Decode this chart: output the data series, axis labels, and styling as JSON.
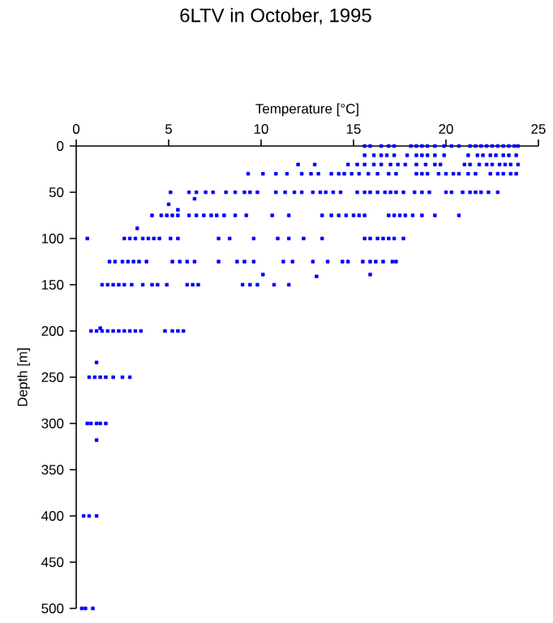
{
  "chart_data": {
    "type": "scatter",
    "title": "6LTV in October, 1995",
    "xlabel": "Temperature [°C]",
    "ylabel": "Depth [m]",
    "xlim": [
      0,
      25
    ],
    "xticks": [
      0,
      5,
      10,
      15,
      20,
      25
    ],
    "ylim": [
      500,
      0
    ],
    "yticks": [
      0,
      50,
      100,
      150,
      200,
      250,
      300,
      350,
      400,
      450,
      500
    ],
    "grid": false,
    "marker": "square",
    "series": [
      {
        "color": "#0000ff",
        "x": [
          15.6,
          15.9,
          16.5,
          16.9,
          17.2,
          18.1,
          18.4,
          18.7,
          19.0,
          19.4,
          19.9,
          20.3,
          20.7,
          21.3,
          21.6,
          21.9,
          22.2,
          22.5,
          22.8,
          23.1,
          23.4,
          23.7,
          23.9,
          15.6,
          16.1,
          16.5,
          16.8,
          17.2,
          17.9,
          18.4,
          18.7,
          19.0,
          19.4,
          19.9,
          21.2,
          21.7,
          22.0,
          22.4,
          22.7,
          23.1,
          23.4,
          23.8,
          12.0,
          12.9,
          14.7,
          15.2,
          15.6,
          16.1,
          16.5,
          17.0,
          17.4,
          17.8,
          18.4,
          18.9,
          19.4,
          19.7,
          21.0,
          21.3,
          21.8,
          22.2,
          22.5,
          22.9,
          23.2,
          23.5,
          23.9,
          9.3,
          10.1,
          10.8,
          11.4,
          12.2,
          12.7,
          13.1,
          13.8,
          14.2,
          14.5,
          14.9,
          15.3,
          15.8,
          16.3,
          16.9,
          17.3,
          18.4,
          18.7,
          19.0,
          19.6,
          20.0,
          20.4,
          20.7,
          21.2,
          21.6,
          22.4,
          22.8,
          23.1,
          23.5,
          23.8,
          5.1,
          6.1,
          6.5,
          7.0,
          7.4,
          8.1,
          8.6,
          9.1,
          9.4,
          9.8,
          10.8,
          11.3,
          11.8,
          12.2,
          12.8,
          13.2,
          13.5,
          13.9,
          14.3,
          15.2,
          15.6,
          15.9,
          16.3,
          16.7,
          17.0,
          17.3,
          17.7,
          18.3,
          18.7,
          19.1,
          20.0,
          20.3,
          20.9,
          21.3,
          21.6,
          21.9,
          22.3,
          22.8,
          6.4,
          5.0,
          5.5,
          3.3,
          4.1,
          4.6,
          4.9,
          5.2,
          5.5,
          6.1,
          6.5,
          6.9,
          7.3,
          7.6,
          8.0,
          8.6,
          9.2,
          10.6,
          11.5,
          13.3,
          13.8,
          14.2,
          14.6,
          15.0,
          15.3,
          15.6,
          16.9,
          17.2,
          17.5,
          17.8,
          18.2,
          18.7,
          19.4,
          20.7,
          0.6,
          2.6,
          2.9,
          3.2,
          3.6,
          3.9,
          4.2,
          4.5,
          5.1,
          5.5,
          7.7,
          8.3,
          9.6,
          10.9,
          11.5,
          12.3,
          13.3,
          15.6,
          15.9,
          16.3,
          16.6,
          16.9,
          17.2,
          17.7,
          1.8,
          2.1,
          2.5,
          2.8,
          3.1,
          3.4,
          3.8,
          5.2,
          5.6,
          6.0,
          6.4,
          7.7,
          8.7,
          9.1,
          9.6,
          11.2,
          11.7,
          12.8,
          13.6,
          14.4,
          14.7,
          15.5,
          15.9,
          16.2,
          16.6,
          17.1,
          17.3,
          10.1,
          13.0,
          15.9,
          1.4,
          1.7,
          2.0,
          2.3,
          2.6,
          3.0,
          3.6,
          4.1,
          4.4,
          4.9,
          6.0,
          6.3,
          6.6,
          9.0,
          9.4,
          9.8,
          10.7,
          11.5,
          0.8,
          1.1,
          1.4,
          1.7,
          2.0,
          2.3,
          2.6,
          2.9,
          3.2,
          3.5,
          4.8,
          5.2,
          5.5,
          5.8,
          1.3,
          0.7,
          1.0,
          1.3,
          1.6,
          2.0,
          2.5,
          2.9,
          1.1,
          0.6,
          0.8,
          1.1,
          1.3,
          1.6,
          1.1,
          0.4,
          0.7,
          1.1,
          0.3,
          0.5,
          0.9
        ],
        "values": [
          0,
          0,
          0,
          0,
          0,
          0,
          0,
          0,
          0,
          0,
          0,
          0,
          0,
          0,
          0,
          0,
          0,
          0,
          0,
          0,
          0,
          0,
          0,
          10,
          10,
          10,
          10,
          10,
          10,
          10,
          10,
          10,
          10,
          10,
          10,
          10,
          10,
          10,
          10,
          10,
          10,
          10,
          20,
          20,
          20,
          20,
          20,
          20,
          20,
          20,
          20,
          20,
          20,
          20,
          20,
          20,
          20,
          20,
          20,
          20,
          20,
          20,
          20,
          20,
          20,
          30,
          30,
          30,
          30,
          30,
          30,
          30,
          30,
          30,
          30,
          30,
          30,
          30,
          30,
          30,
          30,
          30,
          30,
          30,
          30,
          30,
          30,
          30,
          30,
          30,
          30,
          30,
          30,
          30,
          30,
          50,
          50,
          50,
          50,
          50,
          50,
          50,
          50,
          50,
          50,
          50,
          50,
          50,
          50,
          50,
          50,
          50,
          50,
          50,
          50,
          50,
          50,
          50,
          50,
          50,
          50,
          50,
          50,
          50,
          50,
          50,
          50,
          50,
          50,
          50,
          50,
          50,
          50,
          57,
          63,
          69,
          89,
          75,
          75,
          75,
          75,
          75,
          75,
          75,
          75,
          75,
          75,
          75,
          75,
          75,
          75,
          75,
          75,
          75,
          75,
          75,
          75,
          75,
          75,
          75,
          75,
          75,
          75,
          75,
          75,
          75,
          75,
          100,
          100,
          100,
          100,
          100,
          100,
          100,
          100,
          100,
          100,
          100,
          100,
          100,
          100,
          100,
          100,
          100,
          100,
          100,
          100,
          100,
          100,
          100,
          100,
          125,
          125,
          125,
          125,
          125,
          125,
          125,
          125,
          125,
          125,
          125,
          125,
          125,
          125,
          125,
          125,
          125,
          125,
          125,
          125,
          125,
          125,
          125,
          125,
          125,
          125,
          125,
          139,
          141,
          139,
          150,
          150,
          150,
          150,
          150,
          150,
          150,
          150,
          150,
          150,
          150,
          150,
          150,
          150,
          150,
          150,
          150,
          150,
          200,
          200,
          200,
          200,
          200,
          200,
          200,
          200,
          200,
          200,
          200,
          200,
          200,
          200,
          197,
          250,
          250,
          250,
          250,
          250,
          250,
          250,
          234,
          300,
          300,
          300,
          300,
          300,
          318,
          400,
          400,
          400,
          500,
          500,
          500
        ]
      }
    ]
  }
}
